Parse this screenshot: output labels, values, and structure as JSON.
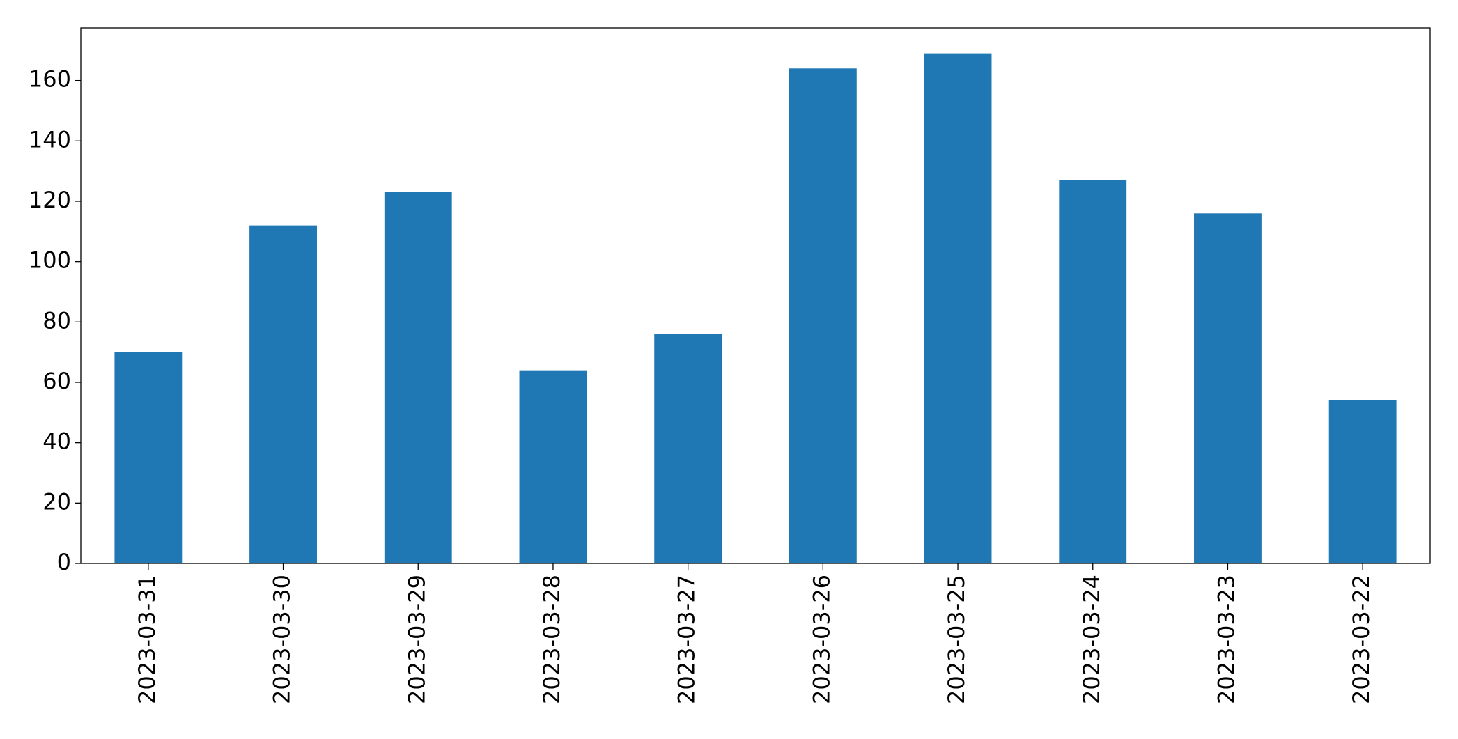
{
  "chart_data": {
    "type": "bar",
    "categories": [
      "2023-03-31",
      "2023-03-30",
      "2023-03-29",
      "2023-03-28",
      "2023-03-27",
      "2023-03-26",
      "2023-03-25",
      "2023-03-24",
      "2023-03-23",
      "2023-03-22"
    ],
    "values": [
      70,
      112,
      123,
      64,
      76,
      164,
      169,
      127,
      116,
      54
    ],
    "color": "#1f77b4",
    "ylim": [
      0,
      177.45
    ],
    "yticks": [
      0,
      20,
      40,
      60,
      80,
      100,
      120,
      140,
      160
    ],
    "grid": false
  }
}
